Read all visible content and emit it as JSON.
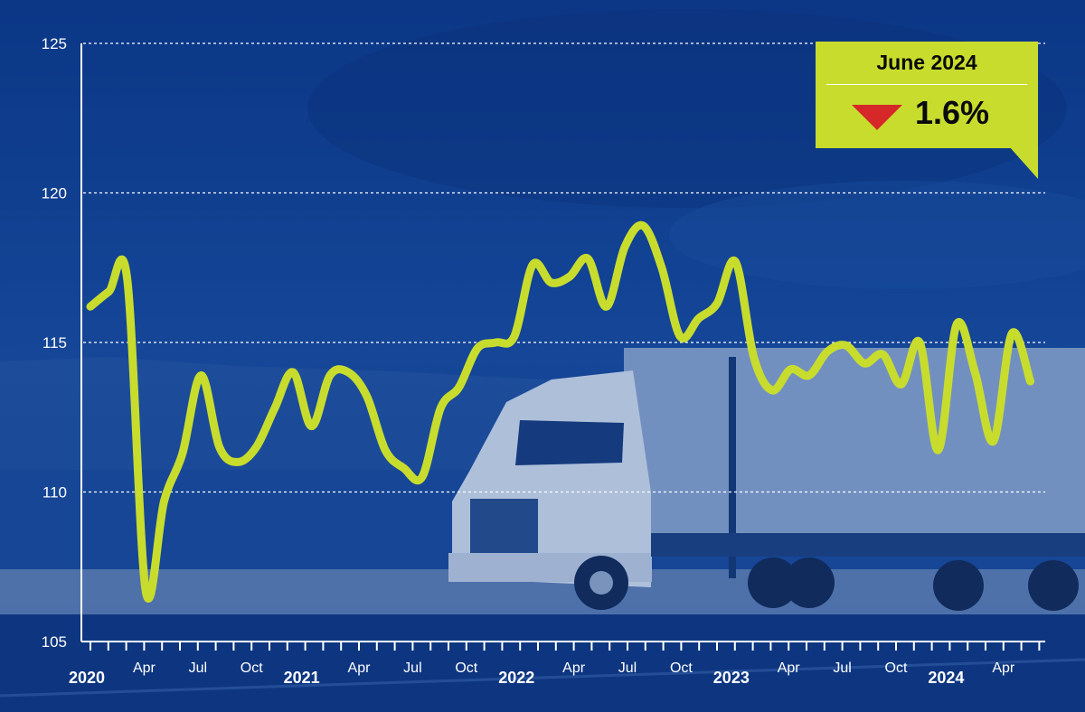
{
  "colors": {
    "background": "#0d3a8c",
    "line": "#c8dc2e",
    "callout": "#c8dc2e",
    "down_arrow": "#d62828",
    "text": "#ffffff"
  },
  "callout": {
    "title": "June 2024",
    "direction_icon": "down-triangle-icon",
    "value": "1.6%"
  },
  "chart_data": {
    "type": "line",
    "title": "",
    "xlabel": "",
    "ylabel": "",
    "ylim": [
      105,
      125
    ],
    "yticks": [
      "105",
      "110",
      "115",
      "120",
      "125"
    ],
    "grid": "horizontal dashed",
    "xticks": [
      {
        "i": 0,
        "label": "2020",
        "year": true
      },
      {
        "i": 3,
        "label": "Apr",
        "year": false
      },
      {
        "i": 6,
        "label": "Jul",
        "year": false
      },
      {
        "i": 9,
        "label": "Oct",
        "year": false
      },
      {
        "i": 12,
        "label": "2021",
        "year": true
      },
      {
        "i": 15,
        "label": "Apr",
        "year": false
      },
      {
        "i": 18,
        "label": "Jul",
        "year": false
      },
      {
        "i": 21,
        "label": "Oct",
        "year": false
      },
      {
        "i": 24,
        "label": "2022",
        "year": true
      },
      {
        "i": 27,
        "label": "Apr",
        "year": false
      },
      {
        "i": 30,
        "label": "Jul",
        "year": false
      },
      {
        "i": 33,
        "label": "Oct",
        "year": false
      },
      {
        "i": 36,
        "label": "2023",
        "year": true
      },
      {
        "i": 39,
        "label": "Apr",
        "year": false
      },
      {
        "i": 42,
        "label": "Jul",
        "year": false
      },
      {
        "i": 45,
        "label": "Oct",
        "year": false
      },
      {
        "i": 48,
        "label": "2024",
        "year": true
      },
      {
        "i": 51,
        "label": "Apr",
        "year": false
      }
    ],
    "n_ticks": 54,
    "series": [
      {
        "values": [
          116.2,
          116.7,
          117.1,
          106.7,
          109.7,
          111.3,
          113.9,
          111.5,
          111.0,
          111.5,
          112.8,
          114.0,
          112.2,
          113.9,
          114.0,
          113.2,
          111.4,
          110.8,
          110.5,
          112.8,
          113.5,
          114.8,
          115.0,
          115.2,
          117.6,
          117.0,
          117.2,
          117.8,
          116.2,
          118.2,
          118.9,
          117.5,
          115.2,
          115.8,
          116.3,
          117.7,
          114.5,
          113.4,
          114.1,
          113.9,
          114.7,
          114.9,
          114.3,
          114.6,
          113.6,
          115.0,
          111.4,
          115.6,
          114.0,
          111.7,
          115.3,
          113.7
        ],
        "start_index": 0,
        "end_index": 52.5
      }
    ]
  }
}
